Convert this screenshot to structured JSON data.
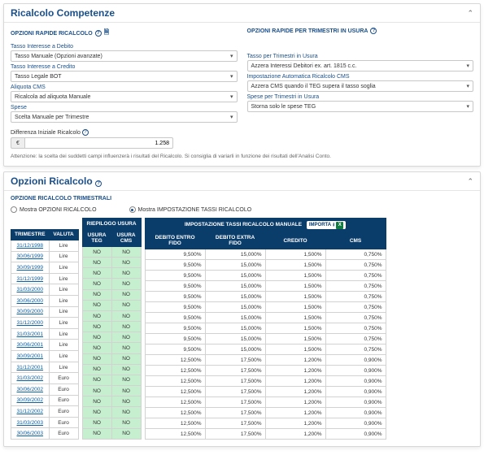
{
  "competenze": {
    "title": "Ricalcolo Competenze",
    "left_section": "OPZIONI RAPIDE RICALCOLO",
    "right_section": "OPZIONI RAPIDE PER TRIMESTRI IN USURA",
    "fields": {
      "tasso_debito_label": "Tasso Interesse a Debito",
      "tasso_debito_value": "Tasso Manuale (Opzioni avanzate)",
      "tasso_credito_label": "Tasso Interesse a Credito",
      "tasso_credito_value": "Tasso Legale BOT",
      "aliquota_cms_label": "Aliquota CMS",
      "aliquota_cms_value": "Ricalcola ad aliquota Manuale",
      "spese_label": "Spese",
      "spese_value": "Scelta Manuale per Trimestre",
      "tasso_usura_label": "Tasso per Trimestri in Usura",
      "tasso_usura_value": "Azzera Interessi Debitori ex. art. 1815 c.c.",
      "impost_auto_label": "Impostazione Automatica Ricalcolo CMS",
      "impost_auto_value": "Azzera CMS quando il TEG supera il tasso soglia",
      "spese_usura_label": "Spese per Trimestri in Usura",
      "spese_usura_value": "Storna solo le spese TEG"
    },
    "diff_label": "Differenza Iniziale Ricalcolo",
    "diff_currency": "€",
    "diff_value": "1.258",
    "note": "Attenzione: la scelta dei suddetti campi influenzerà i risultati del Ricalcolo. Si consiglia di variarli in funzione dei risultati dell'Analisi Conto."
  },
  "opzioni": {
    "title": "Opzioni Ricalcolo",
    "section_label": "OPZIONE RICALCOLO TRIMESTRALI",
    "radio1": "Mostra OPZIONI RICALCOLO",
    "radio2": "Mostra IMPOSTAZIONE TASSI RICALCOLO",
    "headers": {
      "trimestre": "TRIMESTRE",
      "valuta": "VALUTA",
      "riepilogo": "RIEPILOGO USURA",
      "usura_teg": "USURA TEG",
      "usura_cms": "USURA CMS",
      "impostazione": "IMPOSTAZIONE TASSI RICALCOLO MANUALE",
      "importa": "Importa",
      "debito_fido": "DEBITO ENTRO FIDO",
      "debito_extra": "DEBITO EXTRA FIDO",
      "credito": "CREDITO",
      "cms": "CMS"
    },
    "rows": [
      {
        "trim": "31/12/1998",
        "val": "Lire",
        "teg": "NO",
        "cms": "NO",
        "df": "9,500%",
        "de": "15,000%",
        "cr": "1,500%",
        "cm": "0,750%"
      },
      {
        "trim": "30/06/1999",
        "val": "Lire",
        "teg": "NO",
        "cms": "NO",
        "df": "9,500%",
        "de": "15,000%",
        "cr": "1,500%",
        "cm": "0,750%"
      },
      {
        "trim": "30/09/1999",
        "val": "Lire",
        "teg": "NO",
        "cms": "NO",
        "df": "9,500%",
        "de": "15,000%",
        "cr": "1,500%",
        "cm": "0,750%"
      },
      {
        "trim": "31/12/1999",
        "val": "Lire",
        "teg": "NO",
        "cms": "NO",
        "df": "9,500%",
        "de": "15,000%",
        "cr": "1,500%",
        "cm": "0,750%"
      },
      {
        "trim": "31/03/2000",
        "val": "Lire",
        "teg": "NO",
        "cms": "NO",
        "df": "9,500%",
        "de": "15,000%",
        "cr": "1,500%",
        "cm": "0,750%"
      },
      {
        "trim": "30/06/2000",
        "val": "Lire",
        "teg": "NO",
        "cms": "NO",
        "df": "9,500%",
        "de": "15,000%",
        "cr": "1,500%",
        "cm": "0,750%"
      },
      {
        "trim": "30/09/2000",
        "val": "Lire",
        "teg": "NO",
        "cms": "NO",
        "df": "9,500%",
        "de": "15,000%",
        "cr": "1,500%",
        "cm": "0,750%"
      },
      {
        "trim": "31/12/2000",
        "val": "Lire",
        "teg": "NO",
        "cms": "NO",
        "df": "9,500%",
        "de": "15,000%",
        "cr": "1,500%",
        "cm": "0,750%"
      },
      {
        "trim": "31/03/2001",
        "val": "Lire",
        "teg": "NO",
        "cms": "NO",
        "df": "9,500%",
        "de": "15,000%",
        "cr": "1,500%",
        "cm": "0,750%"
      },
      {
        "trim": "30/06/2001",
        "val": "Lire",
        "teg": "NO",
        "cms": "NO",
        "df": "9,500%",
        "de": "15,000%",
        "cr": "1,500%",
        "cm": "0,750%"
      },
      {
        "trim": "30/09/2001",
        "val": "Lire",
        "teg": "NO",
        "cms": "NO",
        "df": "12,500%",
        "de": "17,500%",
        "cr": "1,200%",
        "cm": "0,900%"
      },
      {
        "trim": "31/12/2001",
        "val": "Lire",
        "teg": "NO",
        "cms": "NO",
        "df": "12,500%",
        "de": "17,500%",
        "cr": "1,200%",
        "cm": "0,900%"
      },
      {
        "trim": "31/03/2002",
        "val": "Euro",
        "teg": "NO",
        "cms": "NO",
        "df": "12,500%",
        "de": "17,500%",
        "cr": "1,200%",
        "cm": "0,900%"
      },
      {
        "trim": "30/06/2002",
        "val": "Euro",
        "teg": "NO",
        "cms": "NO",
        "df": "12,500%",
        "de": "17,500%",
        "cr": "1,200%",
        "cm": "0,900%"
      },
      {
        "trim": "30/09/2002",
        "val": "Euro",
        "teg": "NO",
        "cms": "NO",
        "df": "12,500%",
        "de": "17,500%",
        "cr": "1,200%",
        "cm": "0,900%"
      },
      {
        "trim": "31/12/2002",
        "val": "Euro",
        "teg": "NO",
        "cms": "NO",
        "df": "12,500%",
        "de": "17,500%",
        "cr": "1,200%",
        "cm": "0,900%"
      },
      {
        "trim": "31/03/2003",
        "val": "Euro",
        "teg": "NO",
        "cms": "NO",
        "df": "12,500%",
        "de": "17,500%",
        "cr": "1,200%",
        "cm": "0,900%"
      },
      {
        "trim": "30/06/2003",
        "val": "Euro",
        "teg": "NO",
        "cms": "NO",
        "df": "12,500%",
        "de": "17,500%",
        "cr": "1,200%",
        "cm": "0,900%"
      }
    ]
  }
}
